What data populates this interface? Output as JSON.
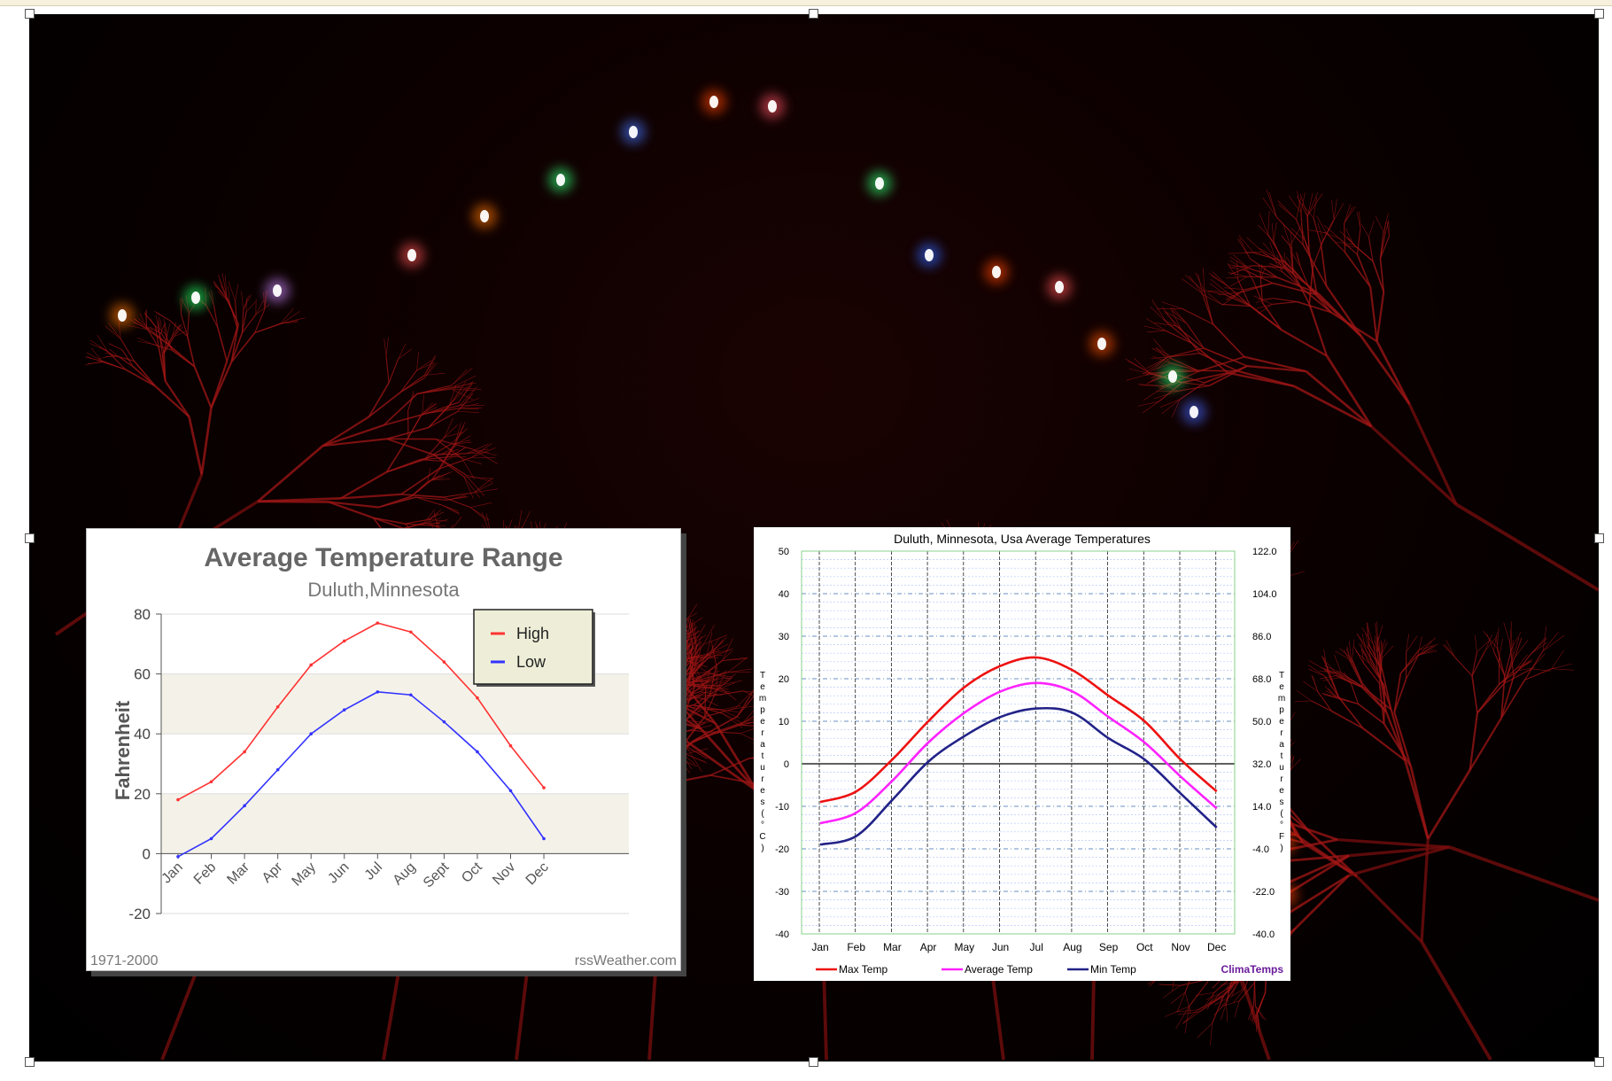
{
  "charts": [
    {
      "title": "Average Temperature Range",
      "subtitle": "Duluth,Minnesota",
      "ylabel": "Fahrenheit",
      "footer_left": "1971-2000",
      "footer_right": "rssWeather.com"
    },
    {
      "title": "Duluth,  Minnesota,  Usa Average Temperatures",
      "ylabel_left": "Temperatures (°C)",
      "ylabel_right": "Temperatures (°F)",
      "brand": "ClimaTemps"
    }
  ],
  "chart_data": [
    {
      "type": "line",
      "title": "Average Temperature Range",
      "subtitle": "Duluth,Minnesota",
      "xlabel": "",
      "ylabel": "Fahrenheit",
      "categories": [
        "Jan",
        "Feb",
        "Mar",
        "Apr",
        "May",
        "Jun",
        "Jul",
        "Aug",
        "Sept",
        "Oct",
        "Nov",
        "Dec"
      ],
      "ylim": [
        -20,
        80
      ],
      "yticks": [
        -20,
        0,
        20,
        40,
        60,
        80
      ],
      "series": [
        {
          "name": "High",
          "color": "#ff3333",
          "values": [
            18,
            24,
            34,
            49,
            63,
            71,
            77,
            74,
            64,
            52,
            36,
            22
          ]
        },
        {
          "name": "Low",
          "color": "#3333ff",
          "values": [
            -1,
            5,
            16,
            28,
            40,
            48,
            54,
            53,
            44,
            34,
            21,
            5
          ]
        }
      ],
      "legend_position": "top-right",
      "grid": "alternating bands",
      "footer_left": "1971-2000",
      "footer_right": "rssWeather.com"
    },
    {
      "type": "line",
      "title": "Duluth,  Minnesota,  Usa Average Temperatures",
      "xlabel": "",
      "ylabel": "Temperatures (°C)",
      "ylabel_right": "Temperatures (°F)",
      "categories": [
        "Jan",
        "Feb",
        "Mar",
        "Apr",
        "May",
        "Jun",
        "Jul",
        "Aug",
        "Sep",
        "Oct",
        "Nov",
        "Dec"
      ],
      "ylim": [
        -40,
        50
      ],
      "yticks": [
        -40,
        -30,
        -20,
        -10,
        0,
        10,
        20,
        30,
        40,
        50
      ],
      "yticks_right": [
        "-40.0",
        "-22.0",
        "-4.0",
        "14.0",
        "32.0",
        "50.0",
        "68.0",
        "86.0",
        "104.0",
        "122.0"
      ],
      "series": [
        {
          "name": "Max Temp",
          "color": "#ee1111",
          "values": [
            -9,
            -6.5,
            1,
            10,
            18,
            23,
            25,
            22,
            16,
            10,
            1,
            -6.5
          ]
        },
        {
          "name": "Average Temp",
          "color": "#ff22ff",
          "values": [
            -14,
            -11.5,
            -4,
            5,
            12,
            17,
            19,
            17,
            11,
            5,
            -3,
            -10.5
          ]
        },
        {
          "name": "Min Temp",
          "color": "#222288",
          "values": [
            -19,
            -17,
            -8.5,
            0.5,
            6.5,
            11,
            13,
            12,
            6,
            1,
            -7,
            -15
          ]
        }
      ],
      "legend_position": "bottom",
      "grid": true,
      "brand": "ClimaTemps"
    }
  ],
  "photo_lights": [
    {
      "color": "#ff7700"
    },
    {
      "color": "#22ff66"
    },
    {
      "color": "#cc88ff"
    },
    {
      "color": "#ff5555"
    },
    {
      "color": "#ff7700"
    },
    {
      "color": "#33ff77"
    },
    {
      "color": "#4477ff"
    },
    {
      "color": "#ff4400"
    },
    {
      "color": "#ff5566"
    },
    {
      "color": "#33ff77"
    },
    {
      "color": "#3366ff"
    },
    {
      "color": "#ff4400"
    },
    {
      "color": "#ff5555"
    },
    {
      "color": "#ff5500"
    },
    {
      "color": "#33ff77"
    },
    {
      "color": "#4466ff"
    },
    {
      "color": "#ff4466"
    },
    {
      "color": "#ff6600"
    },
    {
      "color": "#33ff77"
    },
    {
      "color": "#3366ff"
    },
    {
      "color": "#ff4400"
    },
    {
      "color": "#ff4400"
    }
  ]
}
